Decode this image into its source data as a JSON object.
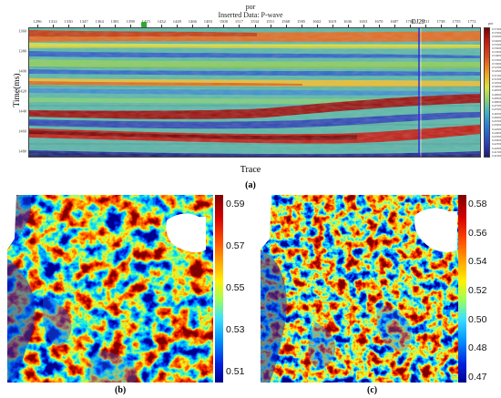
{
  "panel_a": {
    "header_small": "por",
    "title": "Inserted Data: P-wave",
    "well_label": "DJ29",
    "y_axis_label": "Time(ms)",
    "x_axis_label": "Trace",
    "letter": "(a)",
    "trace_ticks": [
      "1296",
      "1312",
      "1330",
      "1347",
      "1364",
      "1381",
      "1398",
      "1415",
      "1432",
      "1449",
      "1466",
      "1483",
      "1500",
      "1517",
      "1534",
      "1551",
      "1568",
      "1585",
      "1602",
      "1619",
      "1636",
      "1653",
      "1670",
      "1687",
      "1704",
      "1721",
      "1738",
      "1755",
      "1772"
    ],
    "time_ticks": [
      "1360",
      "1380",
      "1400",
      "1420",
      "1440",
      "1460",
      "1480"
    ],
    "colorbar_unit": "por",
    "colorbar_ticks": [
      "0.57469",
      "0.57000",
      "0.56500",
      "0.56000",
      "0.55500",
      "0.55000",
      "0.54500",
      "0.54000",
      "0.53500",
      "0.53000",
      "0.52500",
      "0.52000",
      "0.51500",
      "0.51000",
      "0.50500",
      "0.50000",
      "0.49500",
      "0.49000",
      "0.48500",
      "0.48000",
      "0.47500",
      "0.47000",
      "0.46500",
      "0.46000",
      "0.45500",
      "0.45000",
      "0.44500",
      "0.44000",
      "0.43500",
      "0.43000",
      "0.42500",
      "0.42000",
      "0.41500",
      "0.41000"
    ]
  },
  "panel_b": {
    "letter": "(b)",
    "colorbar_labels": [
      "0.59",
      "0.57",
      "0.55",
      "0.53",
      "0.51"
    ]
  },
  "panel_c": {
    "letter": "(c)",
    "colorbar_labels": [
      "0.58",
      "0.56",
      "0.54",
      "0.52",
      "0.50",
      "0.48",
      "0.47"
    ]
  },
  "colors": {
    "low": "#00008f",
    "mid": "#9cff5c",
    "high": "#7f0000",
    "well_marker": "#2ea82e"
  }
}
